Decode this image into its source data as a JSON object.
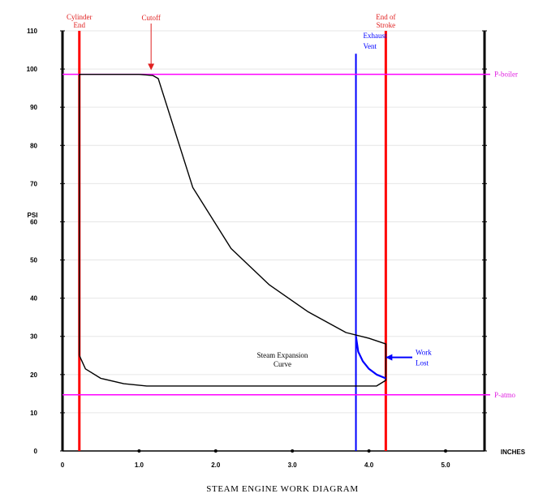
{
  "chart_data": {
    "type": "line",
    "title": "STEAM ENGINE WORK DIAGRAM",
    "ylabel": "PSI",
    "xlabel": "INCHES",
    "xlim": [
      0,
      5.5
    ],
    "ylim": [
      0,
      110
    ],
    "y_ticks": [
      "0",
      "10",
      "20",
      "30",
      "40",
      "50",
      "60",
      "70",
      "80",
      "90",
      "100",
      "110"
    ],
    "x_ticks": [
      "0",
      "1.0",
      "2.0",
      "3.0",
      "4.0",
      "5.0"
    ],
    "grid": true,
    "series": [
      {
        "name": "",
        "color": "#000000",
        "points": [
          [
            0.22,
            25
          ],
          [
            0.3,
            21.5
          ],
          [
            0.5,
            19
          ],
          [
            0.8,
            17.6
          ],
          [
            1.1,
            17
          ],
          [
            2.0,
            17
          ],
          [
            3.0,
            17
          ],
          [
            4.1,
            17
          ],
          [
            4.22,
            18.5
          ],
          [
            4.22,
            28
          ],
          [
            4.0,
            29.5
          ],
          [
            3.7,
            31
          ],
          [
            3.2,
            36.5
          ],
          [
            2.7,
            43.5
          ],
          [
            2.2,
            53
          ],
          [
            1.7,
            69
          ],
          [
            1.25,
            97.5
          ],
          [
            1.18,
            98.3
          ],
          [
            1.0,
            98.6
          ],
          [
            0.5,
            98.6
          ],
          [
            0.22,
            98.6
          ],
          [
            0.22,
            25
          ]
        ]
      },
      {
        "name": "",
        "color": "#0000ff",
        "points": [
          [
            3.83,
            30
          ],
          [
            3.86,
            26
          ],
          [
            3.92,
            23.5
          ],
          [
            4.0,
            21.5
          ],
          [
            4.1,
            20
          ],
          [
            4.22,
            19
          ]
        ]
      }
    ],
    "reference_lines": [
      {
        "orientation": "vertical",
        "x": 0.22,
        "color": "#ff0000",
        "label": "Cylinder End"
      },
      {
        "orientation": "vertical",
        "x": 4.22,
        "color": "#ff0000",
        "label": "End  of Stroke"
      },
      {
        "orientation": "vertical",
        "x": 3.83,
        "color": "#0000ff",
        "label": "Exhaust Vent",
        "y_top": 104
      },
      {
        "orientation": "horizontal",
        "y": 98.6,
        "color": "#ff00ff",
        "label": "P-boiler"
      },
      {
        "orientation": "horizontal",
        "y": 14.7,
        "color": "#ff00ff",
        "label": "P-atmo"
      }
    ],
    "annotations": [
      {
        "text": "Cutoff",
        "color": "#ff0000",
        "arrow_to": [
          1.22,
          99.5
        ]
      },
      {
        "text": "Steam Expansion Curve",
        "color": "#000000"
      },
      {
        "text": "Work Lost",
        "color": "#0000ff",
        "arrow_to": [
          4.22,
          24.5
        ]
      }
    ]
  }
}
